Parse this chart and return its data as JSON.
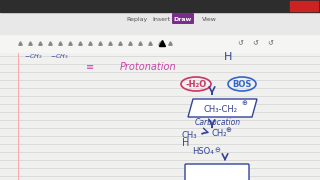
{
  "bg_color": "#f0f0ee",
  "toolbar_color": "#e8e8e8",
  "title_bar_color": "#2d2d2d",
  "draw_button_color": "#7b2d8b",
  "draw_button_text": "Draw",
  "tab_texts": [
    "Replay",
    "Insert",
    "Draw",
    "View"
  ],
  "protonation_text": "Protonation",
  "protonation_color": "#cc44aa",
  "minus_h2o_text": "-H₂O",
  "bos_text": "BOS",
  "circle_color_h2o": "#cc3366",
  "circle_color_bos": "#3366cc",
  "carbocation_text": "CH₃-CH₂",
  "carbocation_label": "Carbocation",
  "carbocation_box_color": "#334499",
  "ch3_text": "CH₃",
  "ch2_text": "CH₂",
  "h_text": "H",
  "hso4_text": "HSO₄",
  "arrow_color": "#334499",
  "handwriting_color": "#334499",
  "line_color": "#cccccc",
  "bottom_box_color": "#334499",
  "eq_sign_color": "#cc44aa",
  "red_button_color": "#cc2222",
  "margin_line_color": "#ffaaaa"
}
